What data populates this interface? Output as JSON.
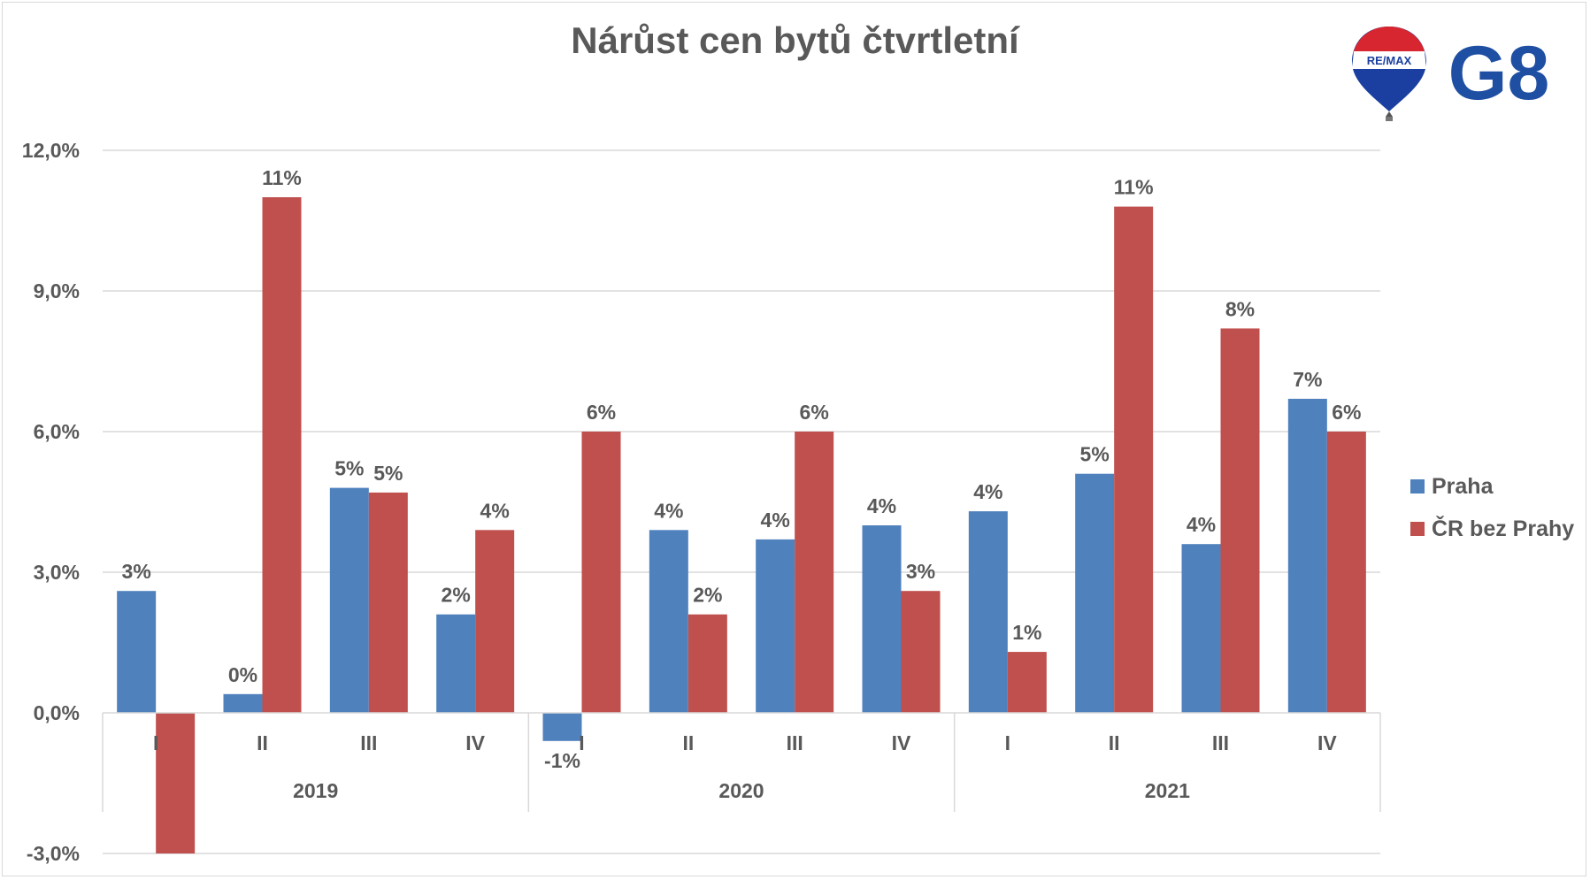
{
  "chart_data": {
    "type": "bar",
    "title": "Nárůst cen bytů čtvrtletní",
    "xlabel": "",
    "ylabel": "",
    "ylim": [
      -3.0,
      12.0
    ],
    "yticks": [
      -3.0,
      0.0,
      3.0,
      6.0,
      9.0,
      12.0
    ],
    "ytick_labels": [
      "-3,0%",
      "0,0%",
      "3,0%",
      "6,0%",
      "9,0%",
      "12,0%"
    ],
    "grid": true,
    "legend_position": "right",
    "categories": [
      "I",
      "II",
      "III",
      "IV",
      "I",
      "II",
      "III",
      "IV",
      "I",
      "II",
      "III",
      "IV"
    ],
    "category_groups": [
      {
        "label": "2019",
        "count": 4
      },
      {
        "label": "2020",
        "count": 4
      },
      {
        "label": "2021",
        "count": 4
      }
    ],
    "series": [
      {
        "name": "Praha",
        "color": "#4f81bd",
        "values": [
          2.6,
          0.4,
          4.8,
          2.1,
          -0.6,
          3.9,
          3.7,
          4.0,
          4.3,
          5.1,
          3.6,
          6.7
        ],
        "labels": [
          "3%",
          "0%",
          "5%",
          "2%",
          "-1%",
          "4%",
          "4%",
          "4%",
          "4%",
          "5%",
          "4%",
          "7%"
        ]
      },
      {
        "name": "ČR bez Prahy",
        "color": "#c0504d",
        "values": [
          -3.0,
          11.0,
          4.7,
          3.9,
          6.0,
          2.1,
          6.0,
          2.6,
          1.3,
          10.8,
          8.2,
          6.0
        ],
        "labels": [
          "",
          "11%",
          "5%",
          "4%",
          "6%",
          "2%",
          "6%",
          "3%",
          "1%",
          "11%",
          "8%",
          "6%"
        ]
      }
    ]
  },
  "logo": {
    "balloon_text": "RE/MAX",
    "brand_text": "G8",
    "brand_color": "#1f4fa3"
  }
}
